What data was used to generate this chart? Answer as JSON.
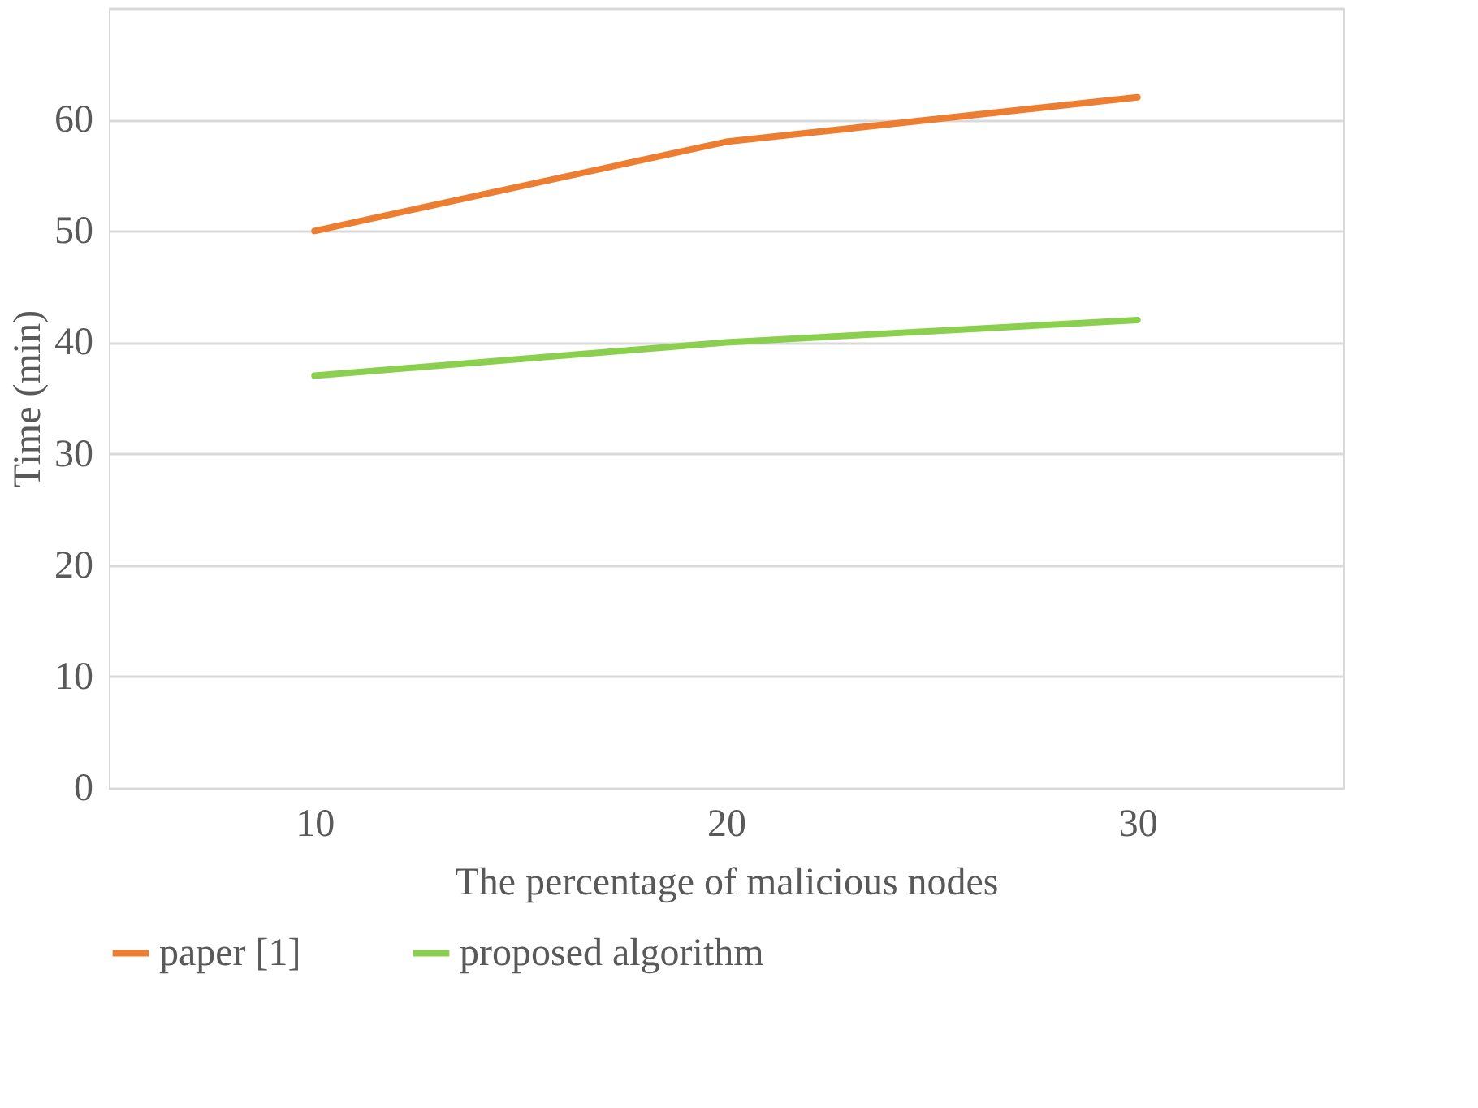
{
  "chart_data": {
    "type": "line",
    "xlabel": "The percentage of malicious nodes",
    "ylabel": "Time (min)",
    "categories": [
      "10",
      "20",
      "30"
    ],
    "series": [
      {
        "name": "paper [1]",
        "color": "#ed7d31",
        "values": [
          50,
          58,
          62
        ]
      },
      {
        "name": "proposed algorithm",
        "color": "#8bcf4f",
        "values": [
          37,
          40,
          42
        ]
      }
    ],
    "ylim": [
      0,
      70
    ],
    "yticks": [
      0,
      10,
      20,
      30,
      40,
      50,
      60,
      {
        "value": 70,
        "label": null
      }
    ],
    "grid": "y",
    "legend": "bottom"
  }
}
